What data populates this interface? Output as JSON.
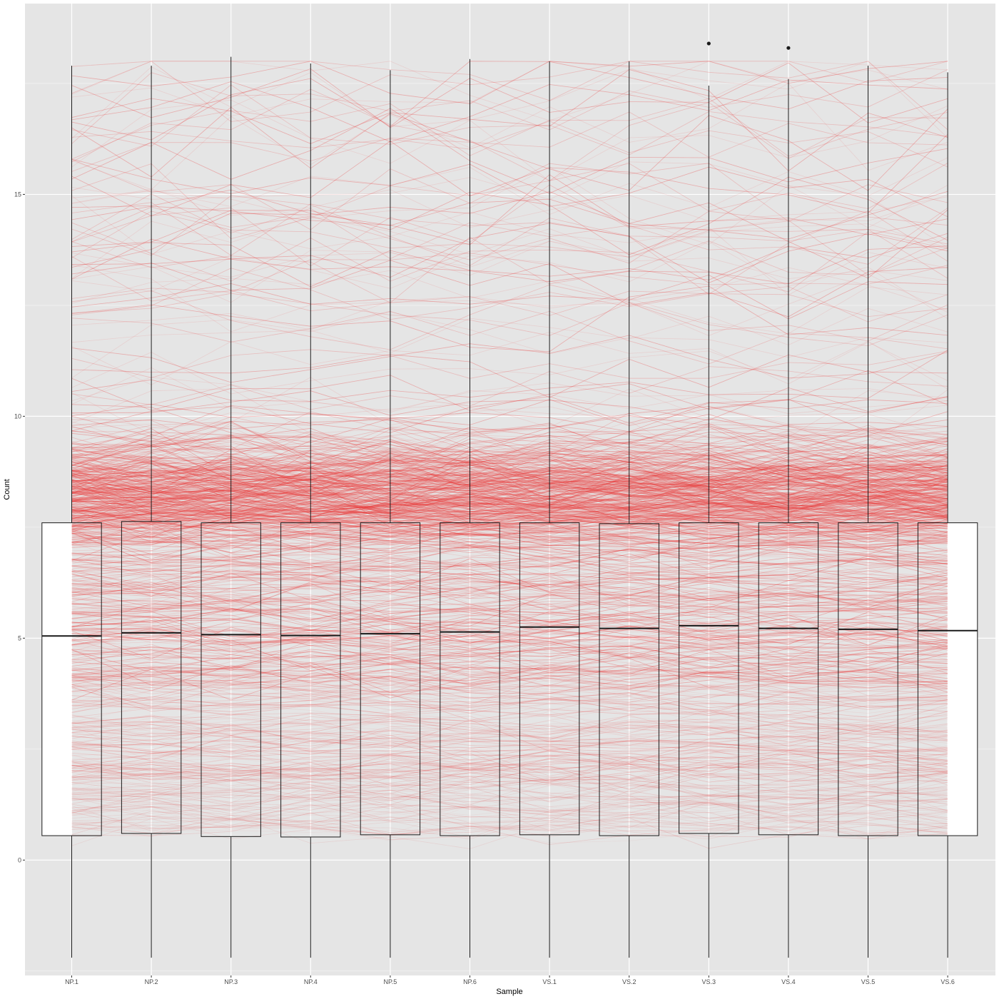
{
  "colors": {
    "panel_background": "#e5e5e5",
    "grid_major": "#ffffff",
    "line_color": "#ee3b3b",
    "box_fill": "#ffffff",
    "box_stroke": "#1a1a1a",
    "tick_label": "#4d4d4d"
  },
  "chart_data": {
    "type": "box",
    "overlay": "parallel-lines (one thin semi-transparent red line per gene across samples)",
    "title": "",
    "xlabel": "Sample",
    "ylabel": "Count",
    "ylim": [
      -2.6,
      19.3
    ],
    "yticks": [
      0,
      5,
      10,
      15
    ],
    "grid": true,
    "legend": "none",
    "categories": [
      "NP.1",
      "NP.2",
      "NP.3",
      "NP.4",
      "NP.5",
      "NP.6",
      "VS.1",
      "VS.2",
      "VS.3",
      "VS.4",
      "VS.5",
      "VS.6"
    ],
    "boxes": [
      {
        "name": "NP.1",
        "lower_whisker": -2.2,
        "q1": 0.55,
        "median": 5.05,
        "q3": 7.6,
        "upper_whisker": 17.9,
        "outliers": []
      },
      {
        "name": "NP.2",
        "lower_whisker": -2.2,
        "q1": 0.6,
        "median": 5.12,
        "q3": 7.63,
        "upper_whisker": 17.9,
        "outliers": []
      },
      {
        "name": "NP.3",
        "lower_whisker": -2.2,
        "q1": 0.53,
        "median": 5.08,
        "q3": 7.6,
        "upper_whisker": 18.1,
        "outliers": []
      },
      {
        "name": "NP.4",
        "lower_whisker": -2.2,
        "q1": 0.52,
        "median": 5.06,
        "q3": 7.6,
        "upper_whisker": 17.95,
        "outliers": []
      },
      {
        "name": "NP.5",
        "lower_whisker": -2.2,
        "q1": 0.57,
        "median": 5.1,
        "q3": 7.6,
        "upper_whisker": 17.8,
        "outliers": []
      },
      {
        "name": "NP.6",
        "lower_whisker": -2.2,
        "q1": 0.55,
        "median": 5.14,
        "q3": 7.6,
        "upper_whisker": 18.05,
        "outliers": []
      },
      {
        "name": "VS.1",
        "lower_whisker": -2.2,
        "q1": 0.57,
        "median": 5.25,
        "q3": 7.6,
        "upper_whisker": 18.0,
        "outliers": []
      },
      {
        "name": "VS.2",
        "lower_whisker": -2.2,
        "q1": 0.55,
        "median": 5.22,
        "q3": 7.58,
        "upper_whisker": 18.0,
        "outliers": []
      },
      {
        "name": "VS.3",
        "lower_whisker": -2.2,
        "q1": 0.6,
        "median": 5.28,
        "q3": 7.6,
        "upper_whisker": 17.45,
        "outliers": [
          18.4
        ]
      },
      {
        "name": "VS.4",
        "lower_whisker": -2.2,
        "q1": 0.57,
        "median": 5.22,
        "q3": 7.6,
        "upper_whisker": 17.6,
        "outliers": [
          18.3
        ]
      },
      {
        "name": "VS.5",
        "lower_whisker": -2.2,
        "q1": 0.55,
        "median": 5.2,
        "q3": 7.6,
        "upper_whisker": 17.9,
        "outliers": []
      },
      {
        "name": "VS.6",
        "lower_whisker": -2.2,
        "q1": 0.55,
        "median": 5.17,
        "q3": 7.6,
        "upper_whisker": 17.75,
        "outliers": []
      }
    ]
  }
}
